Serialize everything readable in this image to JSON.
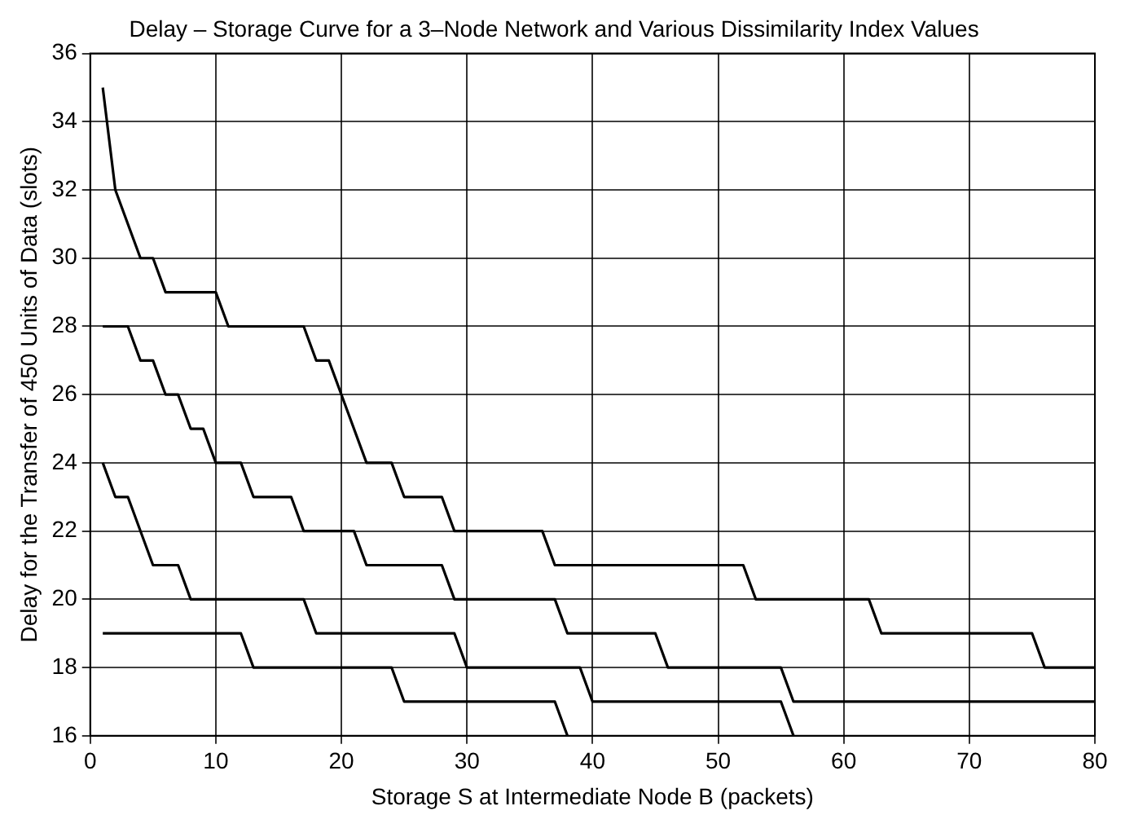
{
  "chart_data": {
    "type": "line",
    "title": "Delay – Storage Curve for a 3–Node Network and Various Dissimilarity Index Values",
    "xlabel": "Storage S at Intermediate Node B (packets)",
    "ylabel": "Delay for the Transfer of 450 Units of Data (slots)",
    "xlim": [
      0,
      80
    ],
    "xticks": [
      0,
      10,
      20,
      30,
      40,
      50,
      60,
      70,
      80
    ],
    "ylim": [
      16,
      36
    ],
    "yticks": [
      16,
      18,
      20,
      22,
      24,
      26,
      28,
      30,
      32,
      34,
      36
    ],
    "grid": true,
    "legend": false,
    "marker": "none",
    "line_style": "solid",
    "series": [
      {
        "color": "#000000",
        "x": [
          1,
          2,
          4,
          5,
          6,
          10,
          11,
          17,
          18,
          19,
          22,
          24,
          25,
          28,
          29,
          36,
          37,
          52,
          53,
          62,
          63,
          75,
          76,
          80
        ],
        "values": [
          35,
          32,
          30,
          30,
          29,
          29,
          28,
          28,
          27,
          27,
          24,
          24,
          23,
          23,
          22,
          22,
          21,
          21,
          20,
          20,
          19,
          19,
          18,
          18
        ]
      },
      {
        "color": "#000000",
        "x": [
          1,
          3,
          4,
          5,
          6,
          7,
          8,
          9,
          10,
          12,
          13,
          16,
          17,
          21,
          22,
          28,
          29,
          37,
          38,
          45,
          46,
          55,
          56,
          80
        ],
        "values": [
          28,
          28,
          27,
          27,
          26,
          26,
          25,
          25,
          24,
          24,
          23,
          23,
          22,
          22,
          21,
          21,
          20,
          20,
          19,
          19,
          18,
          18,
          17,
          17
        ]
      },
      {
        "color": "#000000",
        "x": [
          1,
          2,
          3,
          5,
          7,
          8,
          17,
          18,
          29,
          30,
          39,
          40,
          55,
          56
        ],
        "values": [
          24,
          23,
          23,
          21,
          21,
          20,
          20,
          19,
          19,
          18,
          18,
          17,
          17,
          16
        ]
      },
      {
        "color": "#000000",
        "x": [
          1,
          12,
          13,
          24,
          25,
          37,
          38
        ],
        "values": [
          19,
          19,
          18,
          18,
          17,
          17,
          16
        ]
      }
    ]
  }
}
